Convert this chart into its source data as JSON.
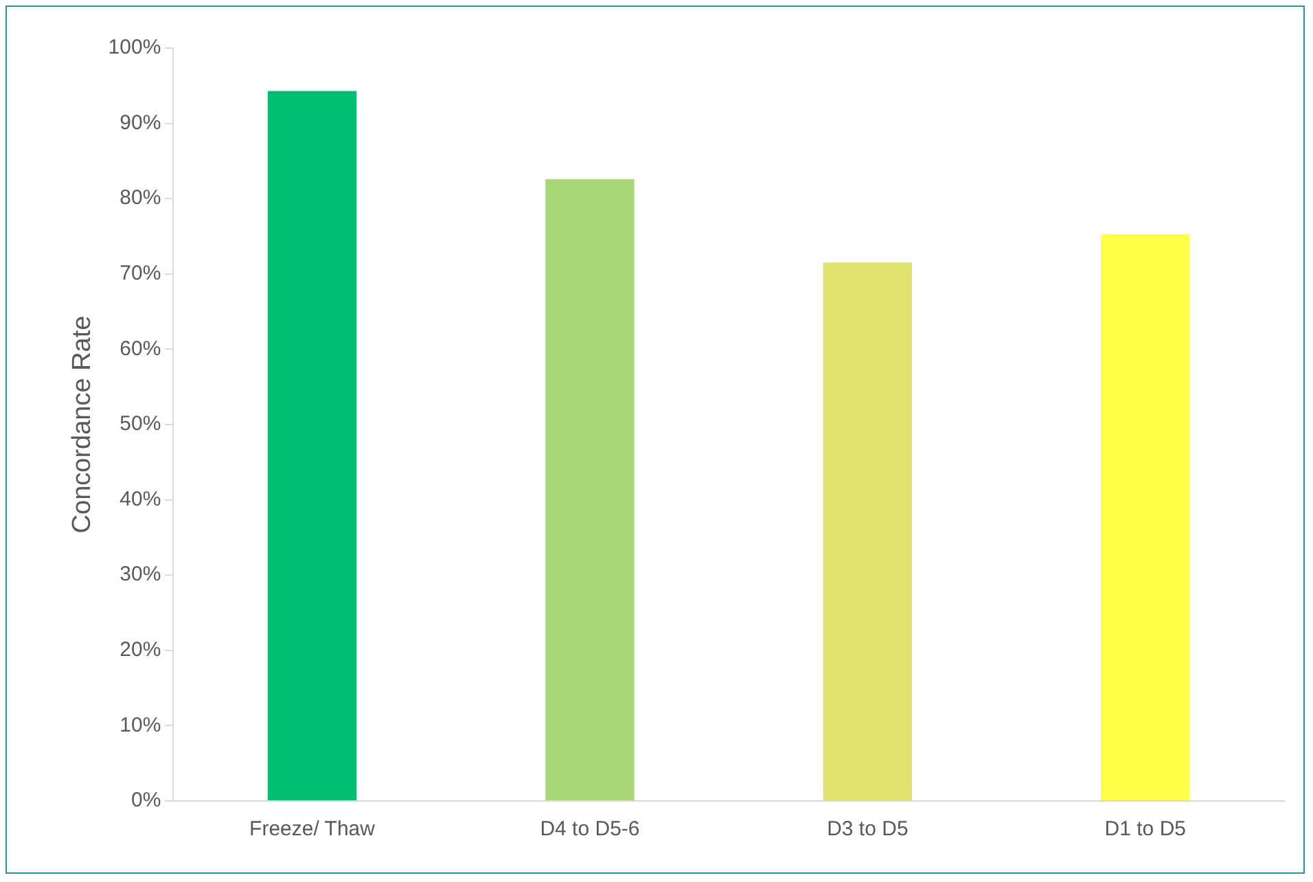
{
  "chart_data": {
    "type": "bar",
    "ylabel": "Concordance Rate",
    "categories": [
      "Freeze/ Thaw",
      "D4 to D5-6",
      "D3 to D5",
      "D1 to D5"
    ],
    "values": [
      94.3,
      82.6,
      71.5,
      75.3
    ],
    "colors": [
      "#00bf73",
      "#a9d677",
      "#dfe26e",
      "#ffff47"
    ],
    "ylim": [
      0,
      100
    ],
    "yticks": [
      {
        "value": 0,
        "label": "0%"
      },
      {
        "value": 10,
        "label": "10%"
      },
      {
        "value": 20,
        "label": "20%"
      },
      {
        "value": 30,
        "label": "30%"
      },
      {
        "value": 40,
        "label": "40%"
      },
      {
        "value": 50,
        "label": "50%"
      },
      {
        "value": 60,
        "label": "60%"
      },
      {
        "value": 70,
        "label": "70%"
      },
      {
        "value": 80,
        "label": "80%"
      },
      {
        "value": 90,
        "label": "90%"
      },
      {
        "value": 100,
        "label": "100%"
      }
    ],
    "grid": false,
    "legend": false
  }
}
